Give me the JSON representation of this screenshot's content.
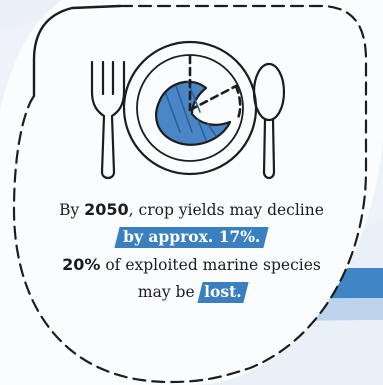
{
  "caption": {
    "line1": {
      "prefix": "By ",
      "year": "2050",
      "suffix": ", crop yields may decline"
    },
    "line2": {
      "highlight": "by approx. 17%."
    },
    "line3": {
      "percent": "20%",
      "suffix": " of exploited marine species"
    },
    "line4": {
      "prefix": "may be ",
      "highlight": "lost."
    }
  },
  "icons": [
    "fork-icon",
    "plate-icon",
    "fish-icon",
    "spoon-icon"
  ],
  "colors": {
    "highlight": "#3a7fc0",
    "fish": "#4a86c5",
    "background": "#eaf0f7",
    "outline": "#1d1d1d"
  }
}
